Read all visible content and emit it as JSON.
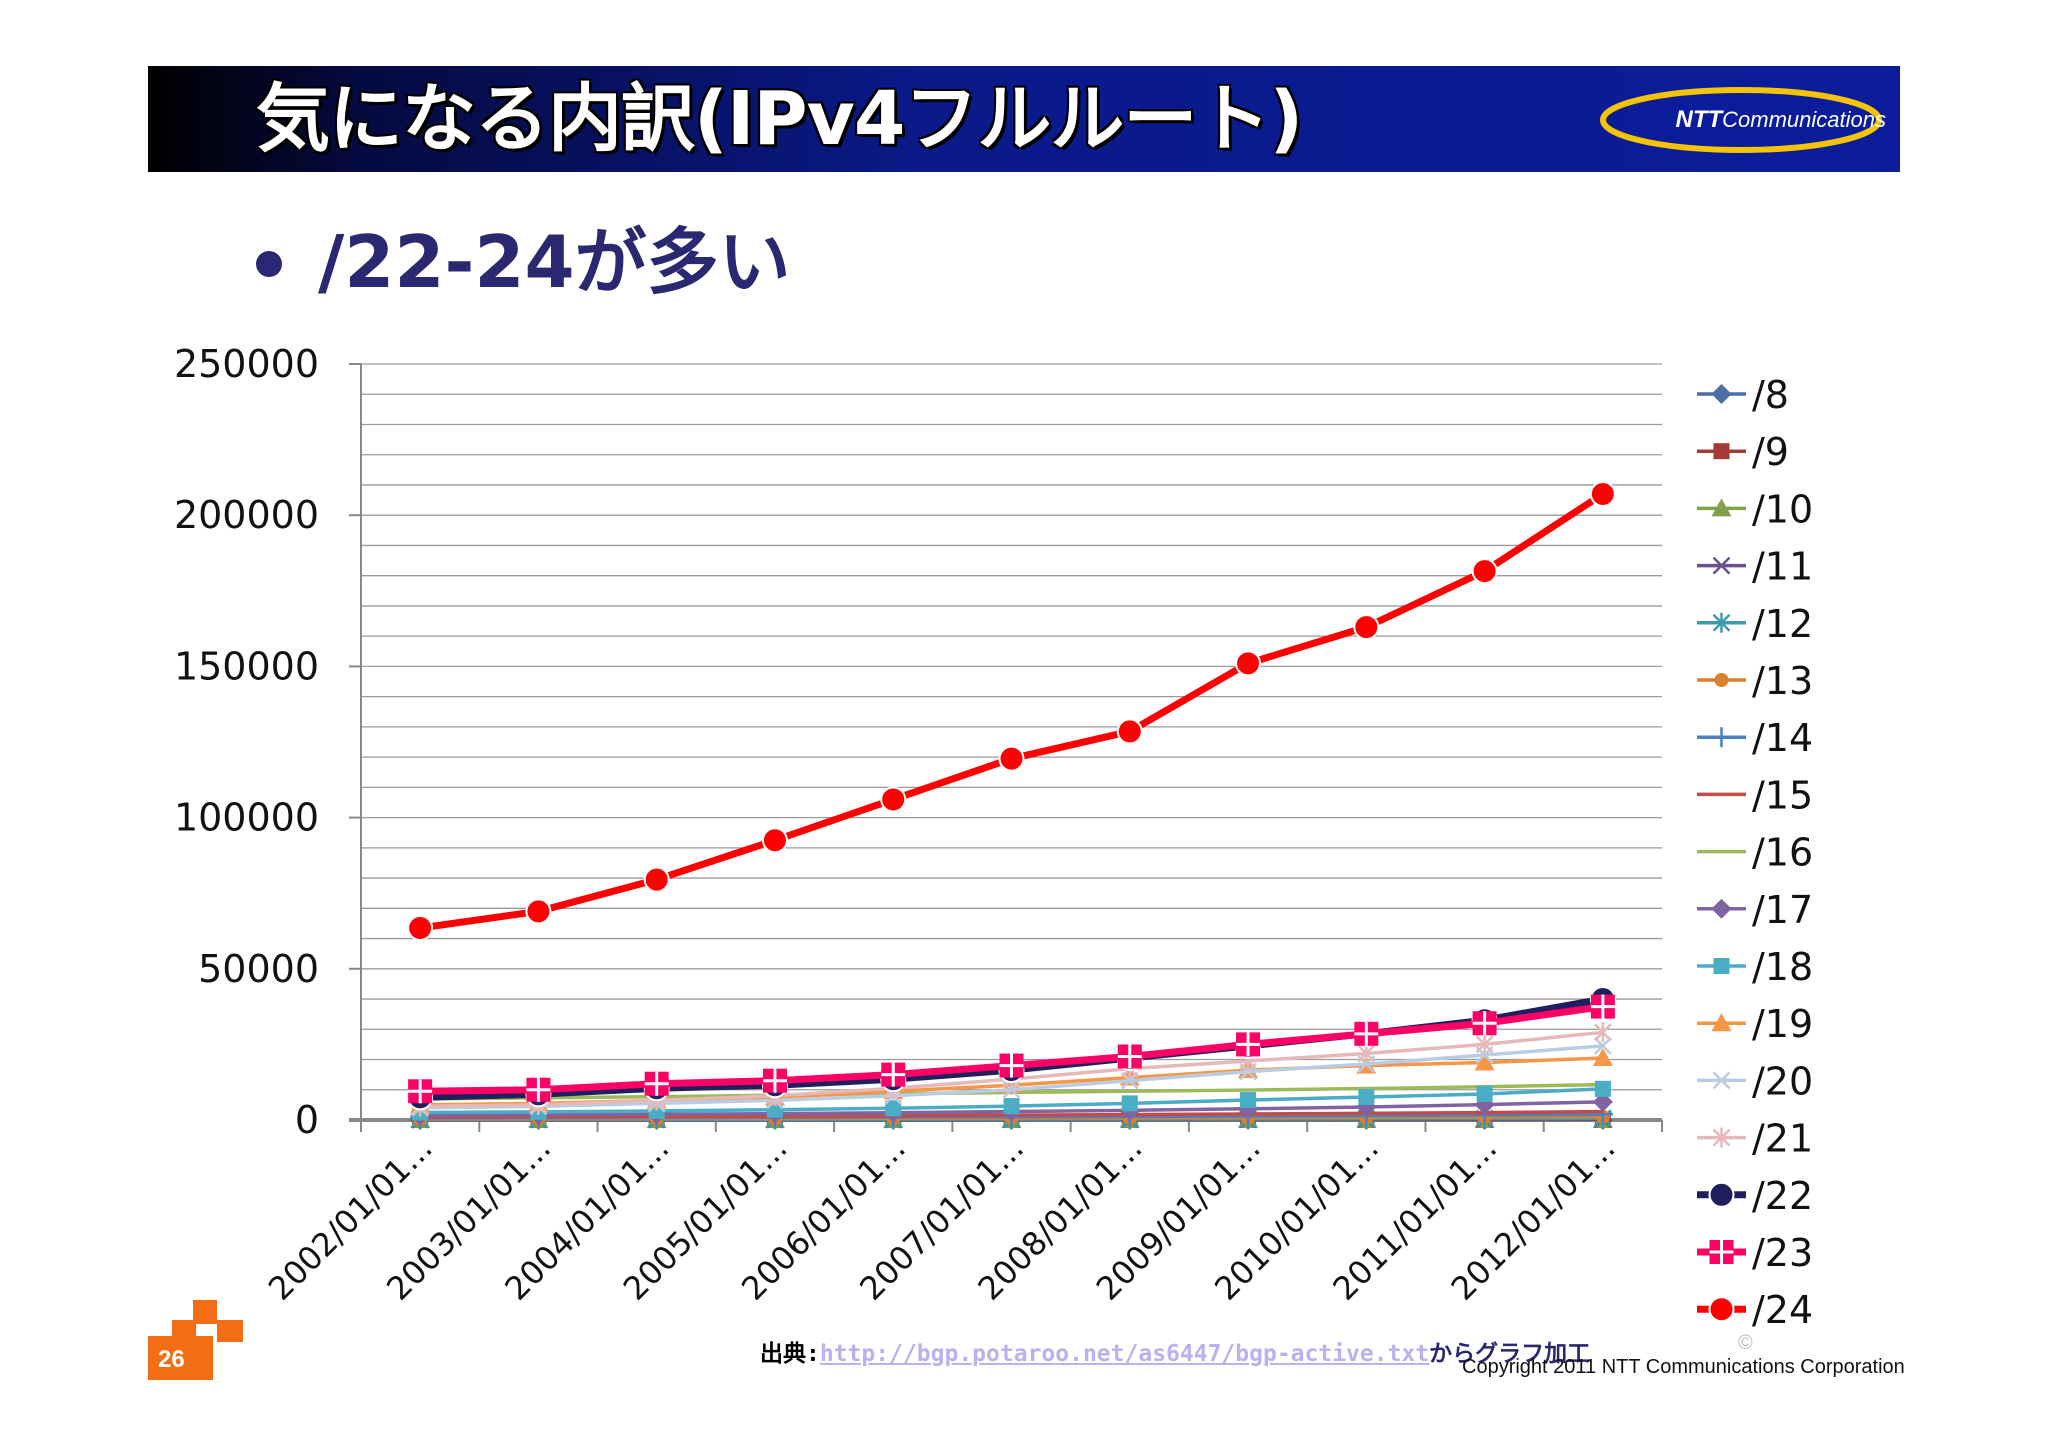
{
  "slide": {
    "title": "気になる内訳(IPv4フルルート)",
    "bullet": "/22-24が多い",
    "logo_brand": "NTT",
    "logo_sub": "Communications",
    "page_number": "26",
    "source_label": "出典:",
    "source_url": "http://bgp.potaroo.net/as6447/bgp-active.txt",
    "source_tail": "からグラフ加工",
    "copyright": "Copyright 2011 NTT Communications Corporation",
    "copyright_mark": "©"
  },
  "chart_data": {
    "type": "line",
    "categories": [
      "2002/01/01...",
      "2003/01/01...",
      "2004/01/01...",
      "2005/01/01...",
      "2006/01/01...",
      "2007/01/01...",
      "2008/01/01...",
      "2009/01/01...",
      "2010/01/01...",
      "2011/01/01...",
      "2012/01/01..."
    ],
    "y_ticks": [
      "0",
      "50000",
      "100000",
      "150000",
      "200000",
      "250000"
    ],
    "ylim": [
      0,
      250000
    ],
    "grid": true,
    "legend_position": "right",
    "series": [
      {
        "name": "/8",
        "color": "#4a6fa5",
        "marker": "diamond",
        "values": [
          20,
          20,
          20,
          20,
          20,
          20,
          20,
          20,
          20,
          20,
          20
        ]
      },
      {
        "name": "/9",
        "color": "#a33a36",
        "marker": "square",
        "values": [
          10,
          10,
          10,
          10,
          10,
          10,
          10,
          10,
          10,
          10,
          10
        ]
      },
      {
        "name": "/10",
        "color": "#7fa24a",
        "marker": "triangle",
        "values": [
          30,
          30,
          30,
          30,
          40,
          40,
          40,
          40,
          50,
          50,
          60
        ]
      },
      {
        "name": "/11",
        "color": "#6b4f8f",
        "marker": "x",
        "values": [
          60,
          70,
          80,
          90,
          100,
          120,
          130,
          150,
          160,
          180,
          200
        ]
      },
      {
        "name": "/12",
        "color": "#3d9bb0",
        "marker": "star",
        "values": [
          200,
          220,
          240,
          260,
          290,
          330,
          370,
          410,
          460,
          520,
          580
        ]
      },
      {
        "name": "/13",
        "color": "#d9812f",
        "marker": "circle",
        "values": [
          400,
          440,
          480,
          520,
          570,
          630,
          700,
          780,
          870,
          970,
          1080
        ]
      },
      {
        "name": "/14",
        "color": "#4a80c4",
        "marker": "plus",
        "values": [
          700,
          760,
          830,
          900,
          980,
          1080,
          1200,
          1340,
          1500,
          1680,
          1900
        ]
      },
      {
        "name": "/15",
        "color": "#c24b47",
        "marker": "none",
        "values": [
          1000,
          1100,
          1200,
          1300,
          1450,
          1600,
          1780,
          1980,
          2200,
          2450,
          2750
        ]
      },
      {
        "name": "/16",
        "color": "#9bbb59",
        "marker": "none",
        "values": [
          7000,
          7300,
          7700,
          8200,
          8700,
          9100,
          9500,
          9900,
          10400,
          11000,
          11700
        ]
      },
      {
        "name": "/17",
        "color": "#8064a2",
        "marker": "diamond",
        "values": [
          1500,
          1700,
          1900,
          2100,
          2400,
          2800,
          3200,
          3700,
          4300,
          5100,
          6000
        ]
      },
      {
        "name": "/18",
        "color": "#4bacc6",
        "marker": "square",
        "values": [
          2500,
          2700,
          3000,
          3400,
          3900,
          4600,
          5500,
          6600,
          7600,
          8600,
          10300
        ]
      },
      {
        "name": "/19",
        "color": "#f79646",
        "marker": "triangle",
        "values": [
          5000,
          5500,
          6500,
          7500,
          9500,
          11500,
          14000,
          16500,
          18000,
          19000,
          20500
        ]
      },
      {
        "name": "/20",
        "color": "#b8cce4",
        "marker": "x",
        "values": [
          4000,
          4500,
          5500,
          6500,
          8000,
          10000,
          13000,
          16000,
          18500,
          21500,
          24500
        ]
      },
      {
        "name": "/21",
        "color": "#e6b9b8",
        "marker": "star",
        "values": [
          4500,
          5000,
          6500,
          8000,
          10500,
          13500,
          17000,
          19500,
          22000,
          25000,
          29000
        ]
      },
      {
        "name": "/22",
        "color": "#1f1f5e",
        "marker": "circle",
        "values": [
          7500,
          8500,
          10500,
          11500,
          13500,
          16500,
          20500,
          24500,
          28500,
          33000,
          40000
        ]
      },
      {
        "name": "/23",
        "color": "#ff0066",
        "marker": "plus-square",
        "values": [
          9500,
          10000,
          12000,
          13000,
          15000,
          18000,
          21000,
          25000,
          28500,
          32000,
          37500
        ]
      },
      {
        "name": "/24",
        "color": "#ff0000",
        "marker": "circle",
        "values": [
          63500,
          69000,
          79500,
          92500,
          106000,
          119500,
          128500,
          151000,
          163000,
          181500,
          207000
        ]
      }
    ]
  }
}
